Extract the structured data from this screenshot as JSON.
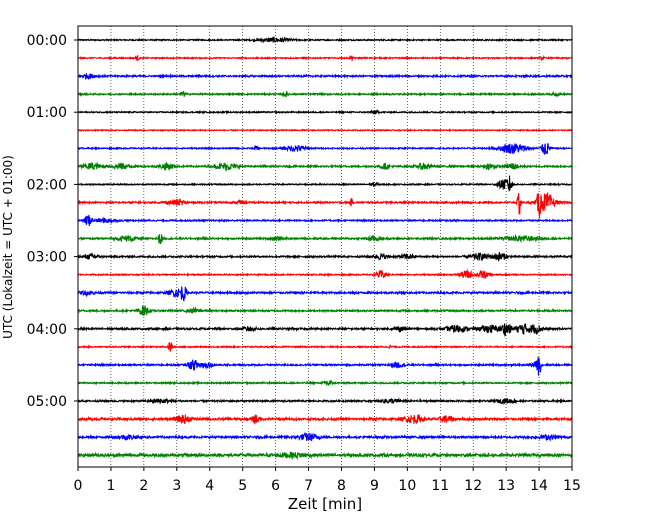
{
  "chart_data": {
    "type": "line",
    "xlabel": "Zeit  [min]",
    "ylabel": "UTC (Lokalzeit = UTC + 01:00)",
    "xlim": [
      0,
      15
    ],
    "x_ticks": [
      "0",
      "1",
      "2",
      "3",
      "4",
      "5",
      "6",
      "7",
      "8",
      "9",
      "10",
      "11",
      "12",
      "13",
      "14",
      "15"
    ],
    "y_ticks": [
      "00:00",
      "01:00",
      "02:00",
      "03:00",
      "04:00",
      "05:00"
    ],
    "grid": "vertical dotted at each minute",
    "trace_interval_minutes": 15,
    "trace_colors": [
      "#000000",
      "#ff0000",
      "#0000ff",
      "#008000"
    ],
    "traces": [
      {
        "time": "00:00",
        "color": "#000000",
        "noise": 0.6,
        "events": [
          {
            "t": 6.0,
            "a": 2.2,
            "w": 0.45
          }
        ]
      },
      {
        "time": "00:15",
        "color": "#ff0000",
        "noise": 0.6,
        "events": [
          {
            "t": 1.8,
            "a": 2.0,
            "w": 0.05
          },
          {
            "t": 8.3,
            "a": 2.0,
            "w": 0.05
          },
          {
            "t": 14.1,
            "a": 2.0,
            "w": 0.05
          }
        ]
      },
      {
        "time": "00:30",
        "color": "#0000ff",
        "noise": 0.8,
        "events": [
          {
            "t": 0.3,
            "a": 2.2,
            "w": 0.2
          }
        ]
      },
      {
        "time": "00:45",
        "color": "#008000",
        "noise": 0.7,
        "events": [
          {
            "t": 3.2,
            "a": 2.5,
            "w": 0.08
          },
          {
            "t": 6.3,
            "a": 2.3,
            "w": 0.08
          },
          {
            "t": 14.5,
            "a": 2.0,
            "w": 0.08
          }
        ]
      },
      {
        "time": "01:00",
        "color": "#000000",
        "noise": 0.6,
        "events": [
          {
            "t": 9.0,
            "a": 2.0,
            "w": 0.1
          }
        ]
      },
      {
        "time": "01:15",
        "color": "#ff0000",
        "noise": 0.5,
        "events": []
      },
      {
        "time": "01:30",
        "color": "#0000ff",
        "noise": 0.6,
        "events": [
          {
            "t": 5.4,
            "a": 2.0,
            "w": 0.05
          },
          {
            "t": 6.6,
            "a": 3.0,
            "w": 0.3
          },
          {
            "t": 13.2,
            "a": 5.0,
            "w": 0.4
          },
          {
            "t": 14.2,
            "a": 7.0,
            "w": 0.12
          }
        ]
      },
      {
        "time": "01:45",
        "color": "#008000",
        "noise": 0.8,
        "events": [
          {
            "t": 0.4,
            "a": 3.0,
            "w": 0.3
          },
          {
            "t": 1.3,
            "a": 3.0,
            "w": 0.25
          },
          {
            "t": 2.7,
            "a": 3.5,
            "w": 0.2
          },
          {
            "t": 4.5,
            "a": 3.5,
            "w": 0.3
          },
          {
            "t": 9.3,
            "a": 2.5,
            "w": 0.15
          },
          {
            "t": 10.5,
            "a": 3.0,
            "w": 0.2
          },
          {
            "t": 12.5,
            "a": 2.5,
            "w": 0.2
          },
          {
            "t": 13.2,
            "a": 3.0,
            "w": 0.2
          }
        ]
      },
      {
        "time": "02:00",
        "color": "#000000",
        "noise": 0.6,
        "events": [
          {
            "t": 9.0,
            "a": 2.0,
            "w": 0.1
          },
          {
            "t": 12.9,
            "a": 5.0,
            "w": 0.15
          },
          {
            "t": 13.1,
            "a": 8.0,
            "w": 0.08
          }
        ]
      },
      {
        "time": "02:15",
        "color": "#ff0000",
        "noise": 0.8,
        "events": [
          {
            "t": 3.0,
            "a": 2.5,
            "w": 0.3
          },
          {
            "t": 4.9,
            "a": 2.0,
            "w": 0.1
          },
          {
            "t": 8.3,
            "a": 3.5,
            "w": 0.04
          },
          {
            "t": 13.4,
            "a": 14.0,
            "w": 0.05
          },
          {
            "t": 14.0,
            "a": 12.0,
            "w": 0.05
          },
          {
            "t": 14.2,
            "a": 9.0,
            "w": 0.25
          }
        ]
      },
      {
        "time": "02:30",
        "color": "#0000ff",
        "noise": 0.7,
        "events": [
          {
            "t": 0.3,
            "a": 6.0,
            "w": 0.1
          },
          {
            "t": 0.8,
            "a": 2.0,
            "w": 0.3
          }
        ]
      },
      {
        "time": "02:45",
        "color": "#008000",
        "noise": 0.8,
        "events": [
          {
            "t": 1.5,
            "a": 2.5,
            "w": 0.3
          },
          {
            "t": 2.5,
            "a": 6.0,
            "w": 0.06
          },
          {
            "t": 6.0,
            "a": 2.0,
            "w": 0.15
          },
          {
            "t": 9.0,
            "a": 2.5,
            "w": 0.2
          },
          {
            "t": 13.5,
            "a": 2.5,
            "w": 0.5
          }
        ]
      },
      {
        "time": "03:00",
        "color": "#000000",
        "noise": 0.8,
        "events": [
          {
            "t": 0.4,
            "a": 2.5,
            "w": 0.2
          },
          {
            "t": 9.2,
            "a": 2.5,
            "w": 0.2
          },
          {
            "t": 10.0,
            "a": 2.5,
            "w": 0.2
          },
          {
            "t": 12.2,
            "a": 3.0,
            "w": 0.3
          },
          {
            "t": 12.8,
            "a": 4.0,
            "w": 0.2
          }
        ]
      },
      {
        "time": "03:15",
        "color": "#ff0000",
        "noise": 0.6,
        "events": [
          {
            "t": 9.2,
            "a": 4.0,
            "w": 0.15
          },
          {
            "t": 11.8,
            "a": 4.0,
            "w": 0.2
          },
          {
            "t": 12.3,
            "a": 4.0,
            "w": 0.15
          }
        ]
      },
      {
        "time": "03:30",
        "color": "#0000ff",
        "noise": 0.9,
        "events": [
          {
            "t": 0.3,
            "a": 2.0,
            "w": 0.2
          },
          {
            "t": 3.0,
            "a": 4.0,
            "w": 0.2
          },
          {
            "t": 3.2,
            "a": 7.0,
            "w": 0.08
          }
        ]
      },
      {
        "time": "03:45",
        "color": "#008000",
        "noise": 0.8,
        "events": [
          {
            "t": 2.0,
            "a": 5.0,
            "w": 0.15
          },
          {
            "t": 3.5,
            "a": 2.0,
            "w": 0.2
          }
        ]
      },
      {
        "time": "04:00",
        "color": "#000000",
        "noise": 0.9,
        "events": [
          {
            "t": 5.2,
            "a": 2.0,
            "w": 0.2
          },
          {
            "t": 9.8,
            "a": 2.0,
            "w": 0.2
          },
          {
            "t": 11.5,
            "a": 3.5,
            "w": 0.3
          },
          {
            "t": 12.5,
            "a": 3.5,
            "w": 0.3
          },
          {
            "t": 13.0,
            "a": 6.0,
            "w": 0.15
          },
          {
            "t": 13.5,
            "a": 5.0,
            "w": 0.2
          },
          {
            "t": 13.9,
            "a": 4.0,
            "w": 0.2
          }
        ]
      },
      {
        "time": "04:15",
        "color": "#ff0000",
        "noise": 0.6,
        "events": [
          {
            "t": 2.8,
            "a": 5.5,
            "w": 0.06
          },
          {
            "t": 9.5,
            "a": 2.0,
            "w": 0.05
          }
        ]
      },
      {
        "time": "04:30",
        "color": "#0000ff",
        "noise": 0.8,
        "events": [
          {
            "t": 3.5,
            "a": 4.0,
            "w": 0.15
          },
          {
            "t": 3.8,
            "a": 3.0,
            "w": 0.25
          },
          {
            "t": 9.7,
            "a": 2.5,
            "w": 0.2
          },
          {
            "t": 13.9,
            "a": 3.0,
            "w": 0.15
          },
          {
            "t": 14.0,
            "a": 9.0,
            "w": 0.05
          }
        ]
      },
      {
        "time": "04:45",
        "color": "#008000",
        "noise": 0.7,
        "events": [
          {
            "t": 7.6,
            "a": 4.0,
            "w": 0.1
          }
        ]
      },
      {
        "time": "05:00",
        "color": "#000000",
        "noise": 0.8,
        "events": [
          {
            "t": 2.5,
            "a": 2.0,
            "w": 0.3
          },
          {
            "t": 9.5,
            "a": 2.0,
            "w": 0.3
          },
          {
            "t": 13.0,
            "a": 2.0,
            "w": 0.3
          }
        ]
      },
      {
        "time": "05:15",
        "color": "#ff0000",
        "noise": 1.1,
        "events": [
          {
            "t": 3.2,
            "a": 4.0,
            "w": 0.2
          },
          {
            "t": 5.4,
            "a": 5.0,
            "w": 0.08
          },
          {
            "t": 10.2,
            "a": 4.0,
            "w": 0.25
          },
          {
            "t": 11.2,
            "a": 3.0,
            "w": 0.2
          }
        ]
      },
      {
        "time": "05:30",
        "color": "#0000ff",
        "noise": 1.0,
        "events": [
          {
            "t": 1.5,
            "a": 2.0,
            "w": 0.3
          },
          {
            "t": 7.0,
            "a": 3.5,
            "w": 0.3
          },
          {
            "t": 14.3,
            "a": 2.0,
            "w": 0.3
          }
        ]
      },
      {
        "time": "05:45",
        "color": "#008000",
        "noise": 1.4,
        "events": [
          {
            "t": 6.5,
            "a": 2.0,
            "w": 0.5
          }
        ]
      }
    ]
  }
}
